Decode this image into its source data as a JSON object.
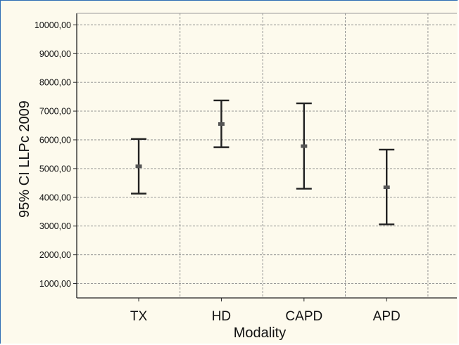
{
  "chart_data": {
    "type": "errorbar",
    "title": "",
    "xlabel": "Modality",
    "ylabel": "95% CI LLPc 2009",
    "categories": [
      "TX",
      "HD",
      "CAPD",
      "APD"
    ],
    "series": [
      {
        "points": [
          {
            "category": "TX",
            "mean": 5080,
            "lower": 4130,
            "upper": 6030
          },
          {
            "category": "HD",
            "mean": 6550,
            "lower": 5740,
            "upper": 7370
          },
          {
            "category": "CAPD",
            "mean": 5780,
            "lower": 4300,
            "upper": 7270
          },
          {
            "category": "APD",
            "mean": 4350,
            "lower": 3060,
            "upper": 5660
          }
        ]
      }
    ],
    "yticks": [
      "1000,00",
      "2000,00",
      "3000,00",
      "4000,00",
      "5000,00",
      "6000,00",
      "7000,00",
      "8000,00",
      "9000,00",
      "10000,00"
    ],
    "ytick_values": [
      1000,
      2000,
      3000,
      4000,
      5000,
      6000,
      7000,
      8000,
      9000,
      10000
    ],
    "ylim": [
      500,
      10400
    ],
    "grid": true,
    "legend": "none",
    "colors": {
      "bar": "#222222",
      "mean_marker": "#555555",
      "grid": "#8c8c8c",
      "plot_bg": "#fdfaed"
    }
  }
}
